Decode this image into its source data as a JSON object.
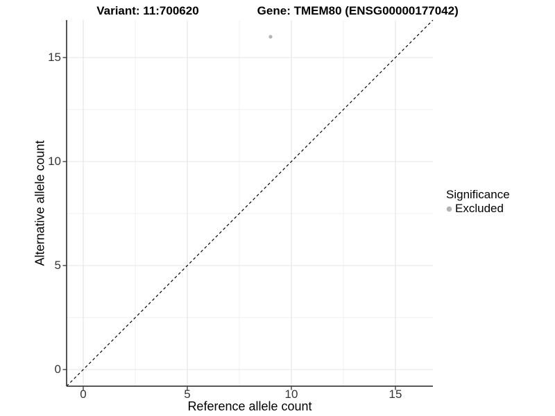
{
  "chart_data": {
    "type": "scatter",
    "title_left": "Variant: 11:700620",
    "title_right": "Gene: TMEM80 (ENSG00000177042)",
    "xlabel": "Reference allele count",
    "ylabel": "Alternative allele count",
    "x_ticks": [
      0,
      5,
      10,
      15
    ],
    "y_ticks": [
      0,
      5,
      10,
      15
    ],
    "xlim": [
      -0.8,
      16.8
    ],
    "ylim": [
      -0.8,
      16.8
    ],
    "grid": true,
    "legend_position": "right",
    "points": [
      {
        "x": 9,
        "y": 16,
        "significance": "Excluded",
        "color": "#b3b3b3"
      }
    ],
    "reference_line": {
      "slope": 1,
      "intercept": 0,
      "style": "dashed",
      "color": "#000000"
    },
    "legend": {
      "title": "Significance",
      "items": [
        {
          "label": "Excluded",
          "color": "#b3b3b3"
        }
      ]
    }
  }
}
